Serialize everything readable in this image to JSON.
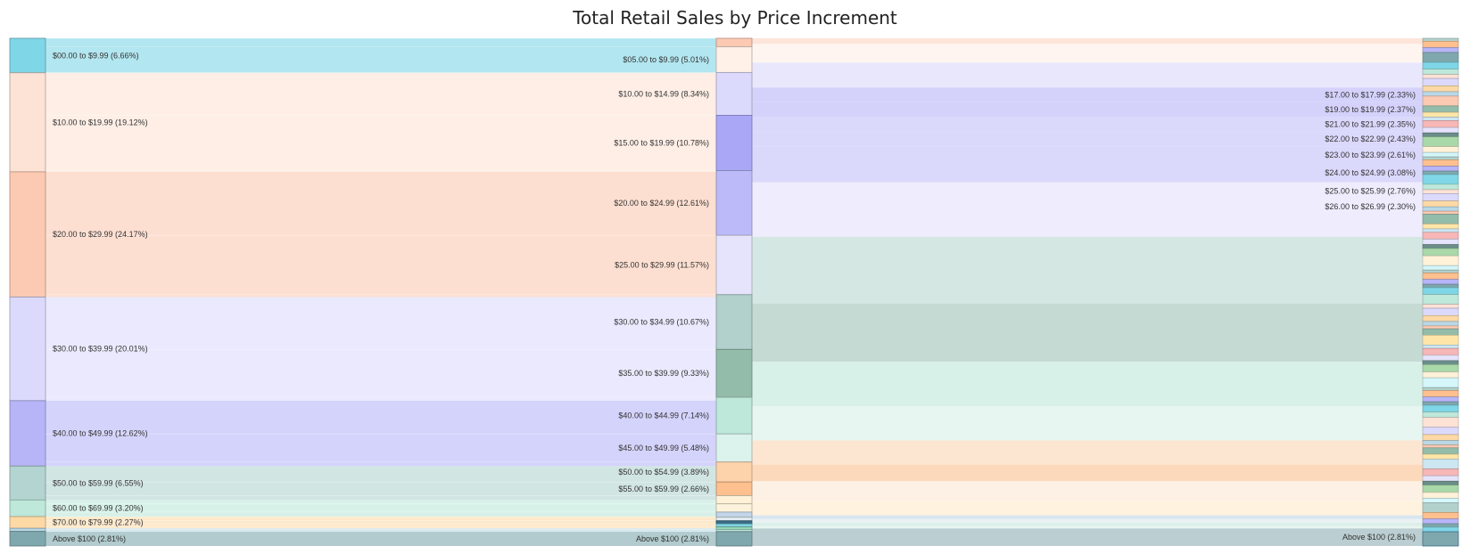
{
  "chart_data": {
    "type": "sankey",
    "title": "Total Retail Sales by Price Increment",
    "column_level_1": [
      {
        "label": "$00.00 to $9.99 (6.66%)",
        "value": 6.66,
        "color": "#7fd6e6"
      },
      {
        "label": "$10.00 to $19.99 (19.12%)",
        "value": 19.12,
        "color": "#fde2d6"
      },
      {
        "label": "$20.00 to $29.99 (24.17%)",
        "value": 24.17,
        "color": "#fcc9b2"
      },
      {
        "label": "$30.00 to $39.99 (20.01%)",
        "value": 20.01,
        "color": "#dcdafc"
      },
      {
        "label": "$40.00 to $49.99 (12.62%)",
        "value": 12.62,
        "color": "#b7b5f8"
      },
      {
        "label": "$50.00 to $59.99 (6.55%)",
        "value": 6.55,
        "color": "#b3d4d0"
      },
      {
        "label": "$60.00 to $69.99 (3.20%)",
        "value": 3.2,
        "color": "#bde8da"
      },
      {
        "label": "$70.00 to $79.99 (2.27%)",
        "value": 2.27,
        "color": "#fdd9a6"
      },
      {
        "label": "",
        "value": 0.6,
        "color": "#b9d8e6"
      },
      {
        "label": "Above $100 (2.81%)",
        "value": 2.81,
        "color": "#7fa8ae"
      }
    ],
    "column_level_2": [
      {
        "label": "",
        "value": 1.65,
        "color": "#fcc9b2"
      },
      {
        "label": "$05.00 to $9.99 (5.01%)",
        "value": 5.01,
        "color": "#fff0e8"
      },
      {
        "label": "$10.00 to $14.99 (8.34%)",
        "value": 8.34,
        "color": "#dcdafc"
      },
      {
        "label": "$15.00 to $19.99 (10.78%)",
        "value": 10.78,
        "color": "#a9a7f6"
      },
      {
        "label": "$20.00 to $24.99 (12.61%)",
        "value": 12.61,
        "color": "#bcbaf9"
      },
      {
        "label": "$25.00 to $29.99 (11.57%)",
        "value": 11.57,
        "color": "#e6e4fc"
      },
      {
        "label": "$30.00 to $34.99 (10.67%)",
        "value": 10.67,
        "color": "#b2d1cc"
      },
      {
        "label": "$35.00 to $39.99 (9.33%)",
        "value": 9.33,
        "color": "#94bcaa"
      },
      {
        "label": "$40.00 to $44.99 (7.14%)",
        "value": 7.14,
        "color": "#bde8da"
      },
      {
        "label": "$45.00 to $49.99 (5.48%)",
        "value": 5.48,
        "color": "#dcf2ec"
      },
      {
        "label": "$50.00 to $54.99 (3.89%)",
        "value": 3.89,
        "color": "#fdd3ac"
      },
      {
        "label": "$55.00 to $59.99 (2.66%)",
        "value": 2.66,
        "color": "#fdc08e"
      },
      {
        "label": "",
        "value": 1.6,
        "color": "#fff2d8"
      },
      {
        "label": "",
        "value": 1.6,
        "color": "#fdf3dc"
      },
      {
        "label": "",
        "value": 1.0,
        "color": "#c3d6e8"
      },
      {
        "label": "",
        "value": 0.7,
        "color": "#e0ecf0"
      },
      {
        "label": "",
        "value": 0.6,
        "color": "#3c6c86"
      },
      {
        "label": "",
        "value": 0.6,
        "color": "#7fd6e6"
      },
      {
        "label": "",
        "value": 0.5,
        "color": "#94d9b8"
      },
      {
        "label": "",
        "value": 0.4,
        "color": "#bde8da"
      },
      {
        "label": "Above $100 (2.81%)",
        "value": 2.81,
        "color": "#7fa8ae"
      }
    ],
    "column_level_3": [
      {
        "label": "",
        "value": 0.9,
        "color": "#fde2d6"
      },
      {
        "label": "",
        "value": 3.0,
        "color": "#fff4ee"
      },
      {
        "label": "",
        "value": 4.0,
        "color": "#e6e4fc"
      },
      {
        "label": "$17.00 to $17.99 (2.33%)",
        "value": 2.33,
        "color": "#cfcdfb"
      },
      {
        "label": "$19.00 to $19.99 (2.37%)",
        "value": 2.37,
        "color": "#cfcdfb"
      },
      {
        "label": "$21.00 to $21.99 (2.35%)",
        "value": 2.35,
        "color": "#d6d4fb"
      },
      {
        "label": "$22.00 to $22.99 (2.43%)",
        "value": 2.43,
        "color": "#d6d4fb"
      },
      {
        "label": "$23.00 to $23.99 (2.61%)",
        "value": 2.61,
        "color": "#d6d4fb"
      },
      {
        "label": "$24.00 to $24.99 (3.08%)",
        "value": 3.08,
        "color": "#d6d4fb"
      },
      {
        "label": "$25.00 to $25.99 (2.76%)",
        "value": 2.76,
        "color": "#eceafd"
      },
      {
        "label": "$26.00 to $26.99 (2.30%)",
        "value": 2.3,
        "color": "#eceafd"
      },
      {
        "label": "",
        "value": 3.7,
        "color": "#eceafd"
      },
      {
        "label": "",
        "value": 10.67,
        "color": "#d0e4e0"
      },
      {
        "label": "",
        "value": 9.33,
        "color": "#bfd6cd"
      },
      {
        "label": "",
        "value": 7.14,
        "color": "#d3eee5"
      },
      {
        "label": "",
        "value": 5.48,
        "color": "#e6f5f0"
      },
      {
        "label": "",
        "value": 3.89,
        "color": "#fde3cc"
      },
      {
        "label": "",
        "value": 2.66,
        "color": "#fcd5b4"
      },
      {
        "label": "",
        "value": 3.2,
        "color": "#fdf0e2"
      },
      {
        "label": "",
        "value": 2.27,
        "color": "#fff1dc"
      },
      {
        "label": "",
        "value": 0.6,
        "color": "#d3e3ee"
      },
      {
        "label": "",
        "value": 0.6,
        "color": "#e8f1f3"
      },
      {
        "label": "",
        "value": 0.5,
        "color": "#d7ece6"
      },
      {
        "label": "",
        "value": 0.4,
        "color": "#e6f4ee"
      },
      {
        "label": "Above $100 (2.81%)",
        "value": 2.81,
        "color": "#b4c9cc"
      }
    ],
    "column_level_4_colors": [
      "#b2d1cc",
      "#fdc08e",
      "#b7b5f8",
      "#7fa8ae",
      "#7fd6e6",
      "#bde8da",
      "#fde2d6",
      "#dcdafc",
      "#fdd9a6",
      "#b9d8e6",
      "#fcc9b2",
      "#94bcaa",
      "#ffe6a8",
      "#cce6f2",
      "#f7b7b7",
      "#e6e4fc",
      "#6b8e8a",
      "#a9d8a9",
      "#fff2d8",
      "#d5f7fa"
    ]
  }
}
